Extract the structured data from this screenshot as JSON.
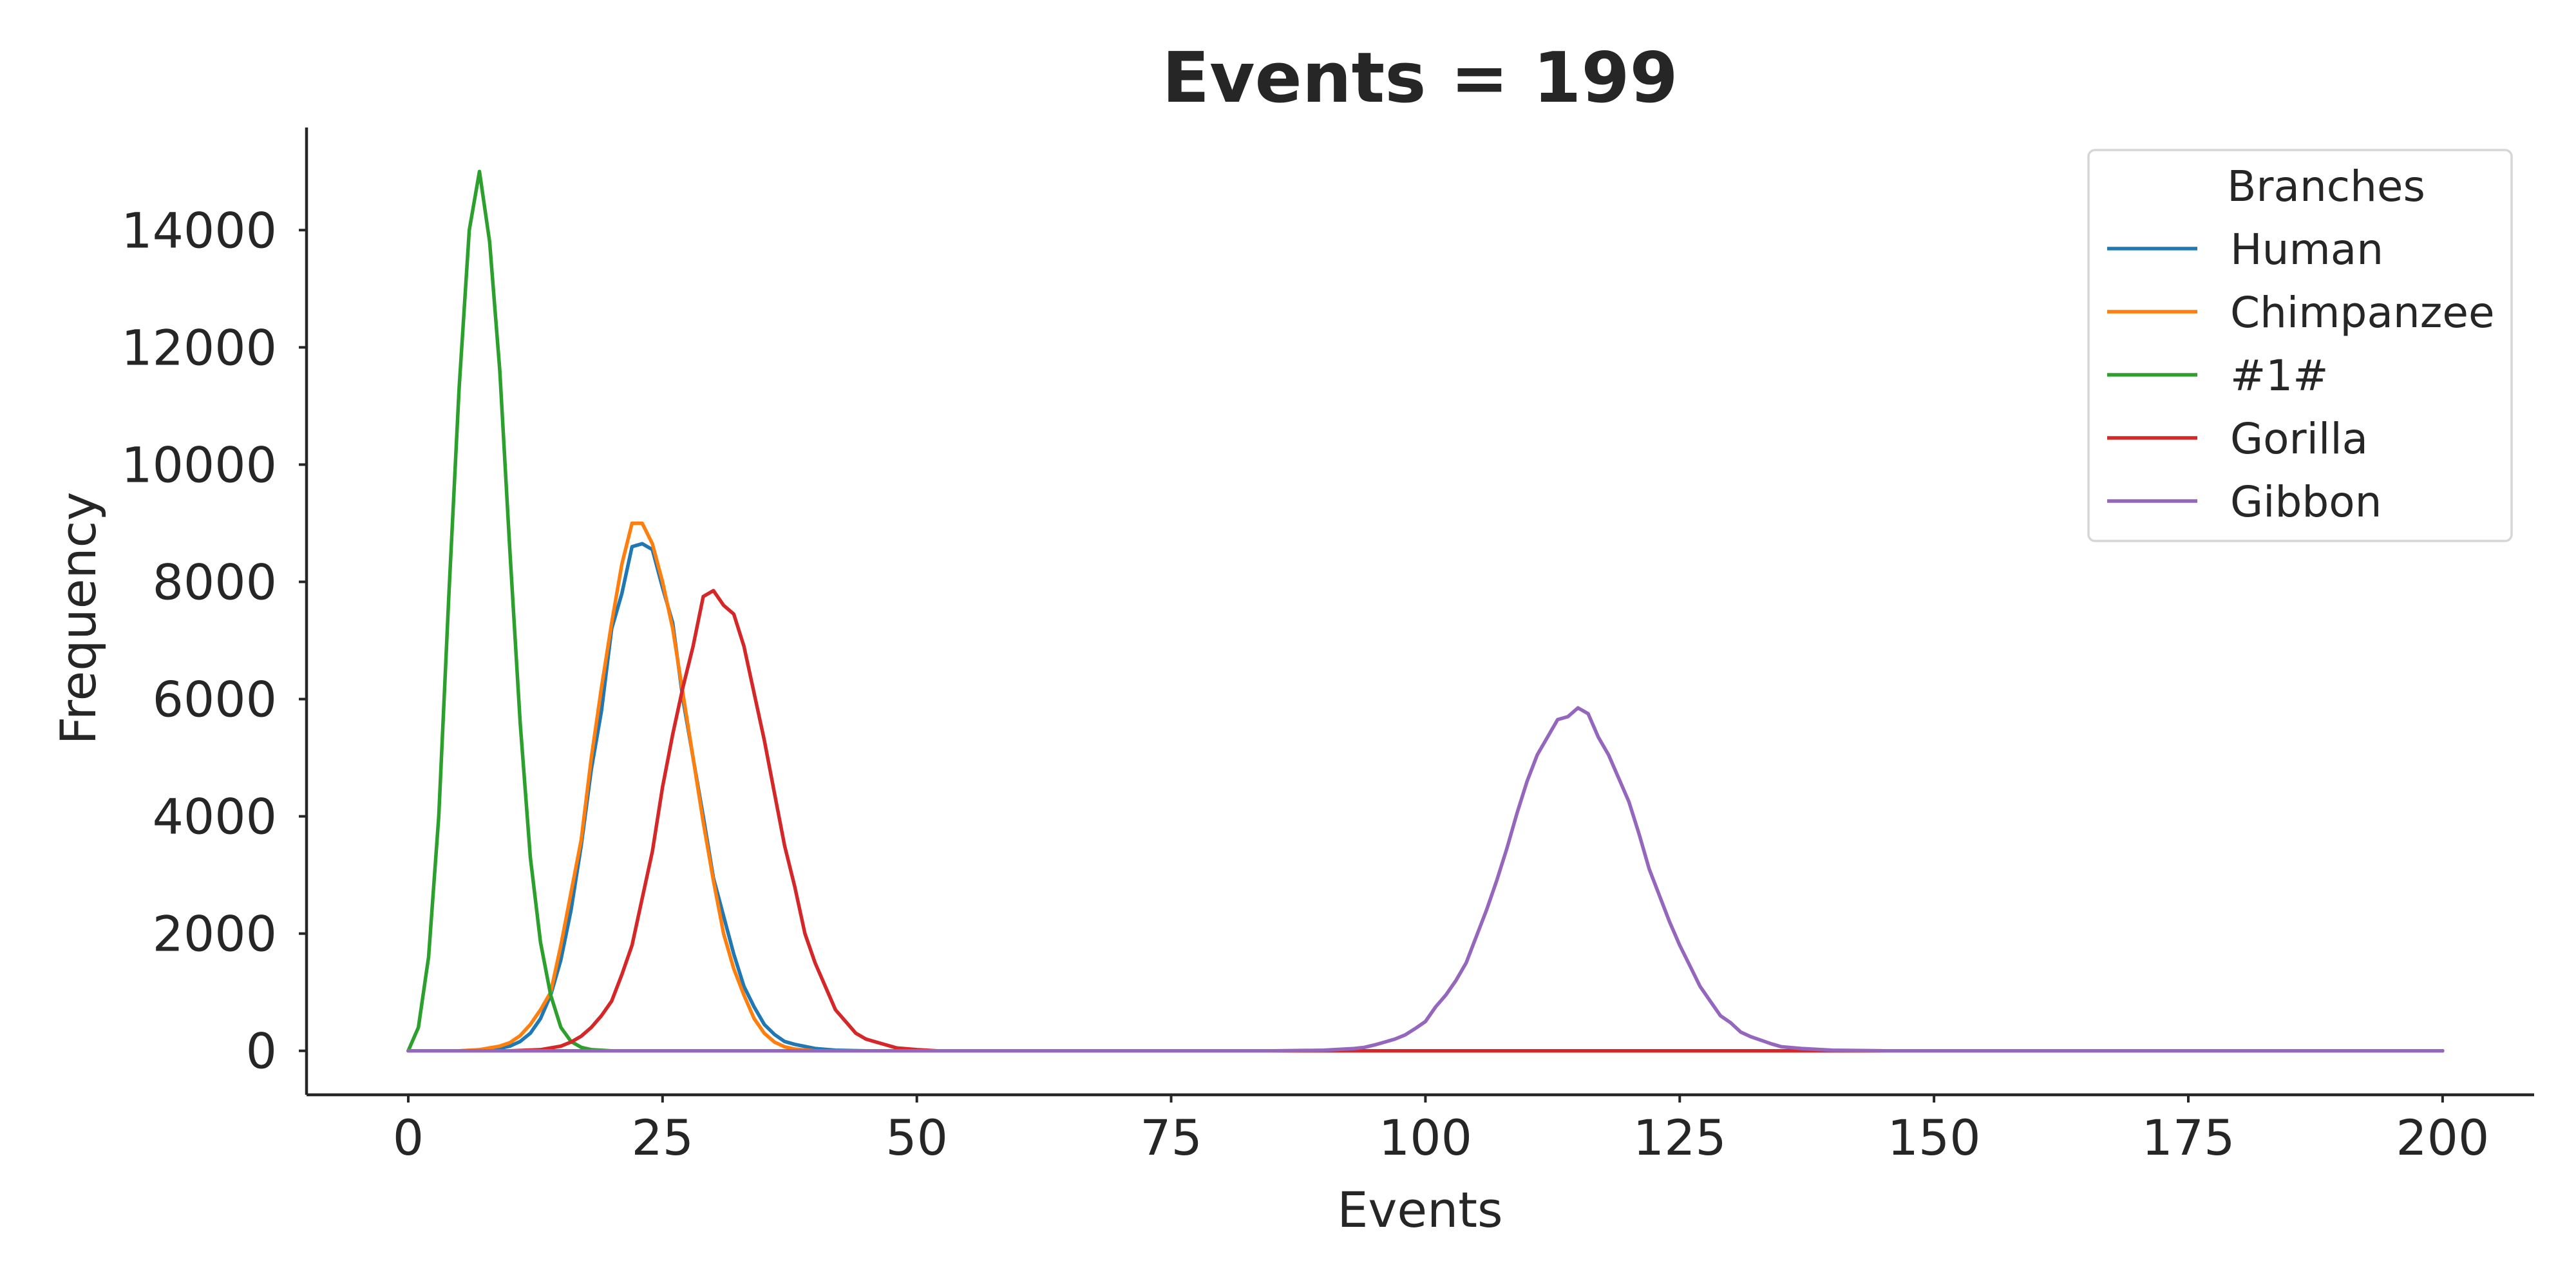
{
  "chart_data": {
    "type": "line",
    "title": "Events = 199",
    "xlabel": "Events",
    "ylabel": "Frequency",
    "xlim": [
      -10,
      209
    ],
    "ylim": [
      -750,
      15750
    ],
    "xticks": [
      0,
      25,
      50,
      75,
      100,
      125,
      150,
      175,
      200
    ],
    "yticks": [
      0,
      2000,
      4000,
      6000,
      8000,
      10000,
      12000,
      14000
    ],
    "grid": false,
    "legend": {
      "title": "Branches",
      "placement": "top-right"
    },
    "series": [
      {
        "name": "Human",
        "color": "#1f77b4",
        "points": [
          [
            0,
            0
          ],
          [
            5,
            0
          ],
          [
            8,
            10
          ],
          [
            10,
            80
          ],
          [
            11,
            160
          ],
          [
            12,
            300
          ],
          [
            13,
            550
          ],
          [
            14,
            950
          ],
          [
            15,
            1550
          ],
          [
            16,
            2400
          ],
          [
            17,
            3500
          ],
          [
            18,
            4800
          ],
          [
            19,
            5800
          ],
          [
            20,
            7200
          ],
          [
            21,
            7800
          ],
          [
            22,
            8600
          ],
          [
            23,
            8650
          ],
          [
            24,
            8550
          ],
          [
            25,
            7900
          ],
          [
            26,
            7300
          ],
          [
            27,
            6000
          ],
          [
            28,
            5000
          ],
          [
            29,
            4000
          ],
          [
            30,
            2950
          ],
          [
            31,
            2300
          ],
          [
            32,
            1650
          ],
          [
            33,
            1100
          ],
          [
            34,
            750
          ],
          [
            35,
            450
          ],
          [
            36,
            280
          ],
          [
            37,
            160
          ],
          [
            38,
            110
          ],
          [
            40,
            40
          ],
          [
            42,
            10
          ],
          [
            45,
            0
          ],
          [
            200,
            0
          ]
        ]
      },
      {
        "name": "Chimpanzee",
        "color": "#ff7f0e",
        "points": [
          [
            0,
            0
          ],
          [
            5,
            0
          ],
          [
            7,
            20
          ],
          [
            9,
            80
          ],
          [
            10,
            140
          ],
          [
            11,
            260
          ],
          [
            12,
            450
          ],
          [
            13,
            700
          ],
          [
            14,
            1000
          ],
          [
            15,
            1800
          ],
          [
            16,
            2700
          ],
          [
            17,
            3600
          ],
          [
            18,
            5000
          ],
          [
            19,
            6200
          ],
          [
            20,
            7300
          ],
          [
            21,
            8300
          ],
          [
            22,
            9000
          ],
          [
            23,
            9000
          ],
          [
            24,
            8650
          ],
          [
            25,
            8000
          ],
          [
            26,
            7200
          ],
          [
            27,
            6100
          ],
          [
            28,
            5000
          ],
          [
            29,
            3900
          ],
          [
            30,
            2900
          ],
          [
            31,
            2000
          ],
          [
            32,
            1400
          ],
          [
            33,
            950
          ],
          [
            34,
            550
          ],
          [
            35,
            300
          ],
          [
            36,
            150
          ],
          [
            37,
            70
          ],
          [
            38,
            30
          ],
          [
            40,
            0
          ],
          [
            200,
            0
          ]
        ]
      },
      {
        "name": "#1#",
        "color": "#2ca02c",
        "points": [
          [
            0,
            0
          ],
          [
            1,
            400
          ],
          [
            2,
            1600
          ],
          [
            3,
            4000
          ],
          [
            4,
            7800
          ],
          [
            5,
            11300
          ],
          [
            6,
            14000
          ],
          [
            7,
            15000
          ],
          [
            8,
            13800
          ],
          [
            9,
            11600
          ],
          [
            10,
            8500
          ],
          [
            11,
            5600
          ],
          [
            12,
            3300
          ],
          [
            13,
            1850
          ],
          [
            14,
            950
          ],
          [
            15,
            400
          ],
          [
            16,
            160
          ],
          [
            17,
            60
          ],
          [
            18,
            20
          ],
          [
            20,
            0
          ],
          [
            200,
            0
          ]
        ]
      },
      {
        "name": "Gorilla",
        "color": "#d62728",
        "points": [
          [
            0,
            0
          ],
          [
            10,
            0
          ],
          [
            13,
            20
          ],
          [
            15,
            80
          ],
          [
            16,
            150
          ],
          [
            17,
            250
          ],
          [
            18,
            400
          ],
          [
            19,
            600
          ],
          [
            20,
            850
          ],
          [
            21,
            1300
          ],
          [
            22,
            1800
          ],
          [
            23,
            2600
          ],
          [
            24,
            3400
          ],
          [
            25,
            4500
          ],
          [
            26,
            5400
          ],
          [
            27,
            6200
          ],
          [
            28,
            6900
          ],
          [
            29,
            7750
          ],
          [
            30,
            7850
          ],
          [
            31,
            7600
          ],
          [
            32,
            7450
          ],
          [
            33,
            6900
          ],
          [
            34,
            6100
          ],
          [
            35,
            5300
          ],
          [
            36,
            4400
          ],
          [
            37,
            3500
          ],
          [
            38,
            2800
          ],
          [
            39,
            2000
          ],
          [
            40,
            1500
          ],
          [
            41,
            1100
          ],
          [
            42,
            700
          ],
          [
            43,
            500
          ],
          [
            44,
            300
          ],
          [
            45,
            200
          ],
          [
            46,
            150
          ],
          [
            47,
            100
          ],
          [
            48,
            50
          ],
          [
            50,
            20
          ],
          [
            52,
            0
          ],
          [
            200,
            0
          ]
        ]
      },
      {
        "name": "Gibbon",
        "color": "#9467bd",
        "points": [
          [
            0,
            0
          ],
          [
            85,
            0
          ],
          [
            90,
            10
          ],
          [
            93,
            40
          ],
          [
            94,
            60
          ],
          [
            95,
            100
          ],
          [
            96,
            150
          ],
          [
            97,
            200
          ],
          [
            98,
            270
          ],
          [
            99,
            380
          ],
          [
            100,
            500
          ],
          [
            101,
            750
          ],
          [
            102,
            950
          ],
          [
            103,
            1200
          ],
          [
            104,
            1500
          ],
          [
            105,
            1950
          ],
          [
            106,
            2400
          ],
          [
            107,
            2900
          ],
          [
            108,
            3450
          ],
          [
            109,
            4050
          ],
          [
            110,
            4600
          ],
          [
            111,
            5050
          ],
          [
            112,
            5350
          ],
          [
            113,
            5650
          ],
          [
            114,
            5700
          ],
          [
            115,
            5850
          ],
          [
            116,
            5750
          ],
          [
            117,
            5350
          ],
          [
            118,
            5050
          ],
          [
            119,
            4650
          ],
          [
            120,
            4250
          ],
          [
            121,
            3700
          ],
          [
            122,
            3100
          ],
          [
            123,
            2650
          ],
          [
            124,
            2200
          ],
          [
            125,
            1800
          ],
          [
            126,
            1450
          ],
          [
            127,
            1100
          ],
          [
            128,
            850
          ],
          [
            129,
            600
          ],
          [
            130,
            480
          ],
          [
            131,
            320
          ],
          [
            132,
            240
          ],
          [
            133,
            180
          ],
          [
            134,
            120
          ],
          [
            135,
            70
          ],
          [
            137,
            40
          ],
          [
            140,
            10
          ],
          [
            145,
            0
          ],
          [
            200,
            0
          ]
        ]
      }
    ]
  }
}
